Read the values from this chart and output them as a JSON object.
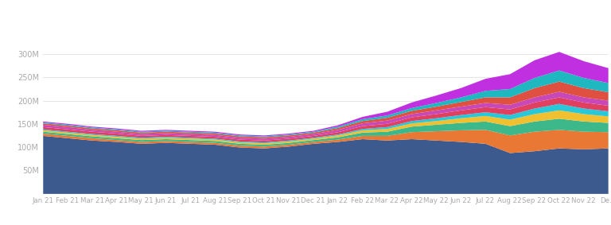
{
  "labels": [
    "Jan 21",
    "Feb 21",
    "Mar 21",
    "Apr 21",
    "May 21",
    "Jun 21",
    "Jul 21",
    "Aug 21",
    "Sep 21",
    "Oct 21",
    "Nov 21",
    "Dec 21",
    "Jan 22",
    "Feb 22",
    "Mar 22",
    "Apr 22",
    "May 22",
    "Jun 22",
    "Jul 22",
    "Aug 22",
    "Sep 22",
    "Oct 22",
    "Nov 22",
    "De..."
  ],
  "series": {
    "bet365.com": [
      125,
      120,
      115,
      112,
      108,
      110,
      108,
      106,
      100,
      98,
      102,
      108,
      112,
      118,
      115,
      118,
      115,
      112,
      108,
      88,
      92,
      98,
      96,
      98
    ],
    "blaze.com": [
      5,
      5,
      5,
      4,
      4,
      4,
      4,
      4,
      4,
      4,
      4,
      4,
      5,
      7,
      10,
      15,
      20,
      25,
      30,
      38,
      42,
      40,
      38,
      35
    ],
    "betano.com": [
      4,
      4,
      4,
      4,
      4,
      4,
      4,
      4,
      4,
      4,
      4,
      4,
      5,
      7,
      9,
      12,
      14,
      16,
      18,
      20,
      22,
      24,
      22,
      20
    ],
    "pixbet.com": [
      3,
      3,
      3,
      3,
      3,
      3,
      3,
      3,
      3,
      3,
      3,
      3,
      4,
      5,
      6,
      7,
      8,
      10,
      12,
      14,
      16,
      18,
      16,
      14
    ],
    "br.betano.com": [
      2,
      2,
      2,
      2,
      2,
      2,
      2,
      2,
      2,
      2,
      2,
      2,
      2,
      3,
      4,
      5,
      6,
      7,
      8,
      10,
      12,
      14,
      12,
      11
    ],
    "flashscore.com.br": [
      5,
      5,
      5,
      5,
      4,
      4,
      4,
      4,
      4,
      4,
      4,
      4,
      5,
      6,
      7,
      8,
      9,
      10,
      11,
      12,
      13,
      14,
      13,
      12
    ],
    "betfair.com": [
      5,
      5,
      4,
      4,
      4,
      4,
      4,
      4,
      4,
      4,
      4,
      4,
      5,
      6,
      7,
      7,
      8,
      8,
      9,
      10,
      11,
      12,
      11,
      11
    ],
    "sportingbet.com": [
      3,
      3,
      3,
      3,
      3,
      3,
      3,
      3,
      3,
      3,
      3,
      3,
      4,
      5,
      6,
      7,
      8,
      10,
      12,
      16,
      20,
      22,
      20,
      18
    ],
    "sports.sportingbet.com": [
      2,
      2,
      2,
      2,
      2,
      2,
      2,
      2,
      2,
      2,
      2,
      2,
      3,
      4,
      5,
      6,
      8,
      10,
      14,
      18,
      22,
      24,
      22,
      20
    ],
    "galera.bet": [
      2,
      2,
      2,
      2,
      2,
      2,
      2,
      2,
      2,
      2,
      2,
      2,
      3,
      5,
      8,
      12,
      16,
      20,
      26,
      32,
      38,
      40,
      36,
      32
    ]
  },
  "colors": {
    "bet365.com": "#3d5a8e",
    "blaze.com": "#e87833",
    "betano.com": "#3db88a",
    "pixbet.com": "#f0c030",
    "br.betano.com": "#28c8d8",
    "flashscore.com.br": "#e04060",
    "betfair.com": "#c848b8",
    "sportingbet.com": "#e05040",
    "sports.sportingbet.com": "#20b8c0",
    "galera.bet": "#c030e0"
  },
  "ylim": [
    0,
    320
  ],
  "yticks": [
    50,
    100,
    150,
    200,
    250,
    300
  ],
  "ytick_labels": [
    "50M",
    "100M",
    "150M",
    "200M",
    "250M",
    "300M"
  ],
  "background_color": "#ffffff",
  "plot_bg_color": "#ffffff"
}
